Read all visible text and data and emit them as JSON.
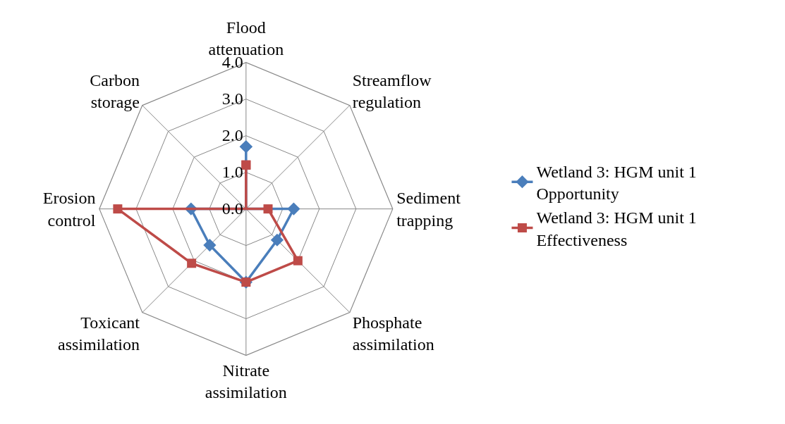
{
  "chart_data": {
    "type": "radar",
    "categories": [
      "Flood attenuation",
      "Streamflow regulation",
      "Sediment trapping",
      "Phosphate assimilation",
      "Nitrate assimilation",
      "Toxicant assimilation",
      "Erosion control",
      "Carbon storage"
    ],
    "series": [
      {
        "name": "Wetland 3: HGM unit 1 Opportunity",
        "color": "#4a7ebb",
        "marker": "diamond",
        "values": [
          1.7,
          0,
          1.3,
          1.2,
          2.0,
          1.4,
          1.5,
          0
        ]
      },
      {
        "name": "Wetland 3: HGM unit 1 Effectiveness",
        "color": "#be4b48",
        "marker": "square",
        "values": [
          1.2,
          0,
          0.6,
          2.0,
          2.0,
          2.1,
          3.5,
          0
        ]
      }
    ],
    "ylim": [
      0,
      4
    ],
    "yticks": [
      {
        "value": 0,
        "label": "0.0"
      },
      {
        "value": 1,
        "label": "1.0"
      },
      {
        "value": 2,
        "label": "2.0"
      },
      {
        "value": 3,
        "label": "3.0"
      },
      {
        "value": 4,
        "label": "4.0"
      }
    ],
    "grid": true,
    "legend": "right",
    "line_style": "solid"
  }
}
